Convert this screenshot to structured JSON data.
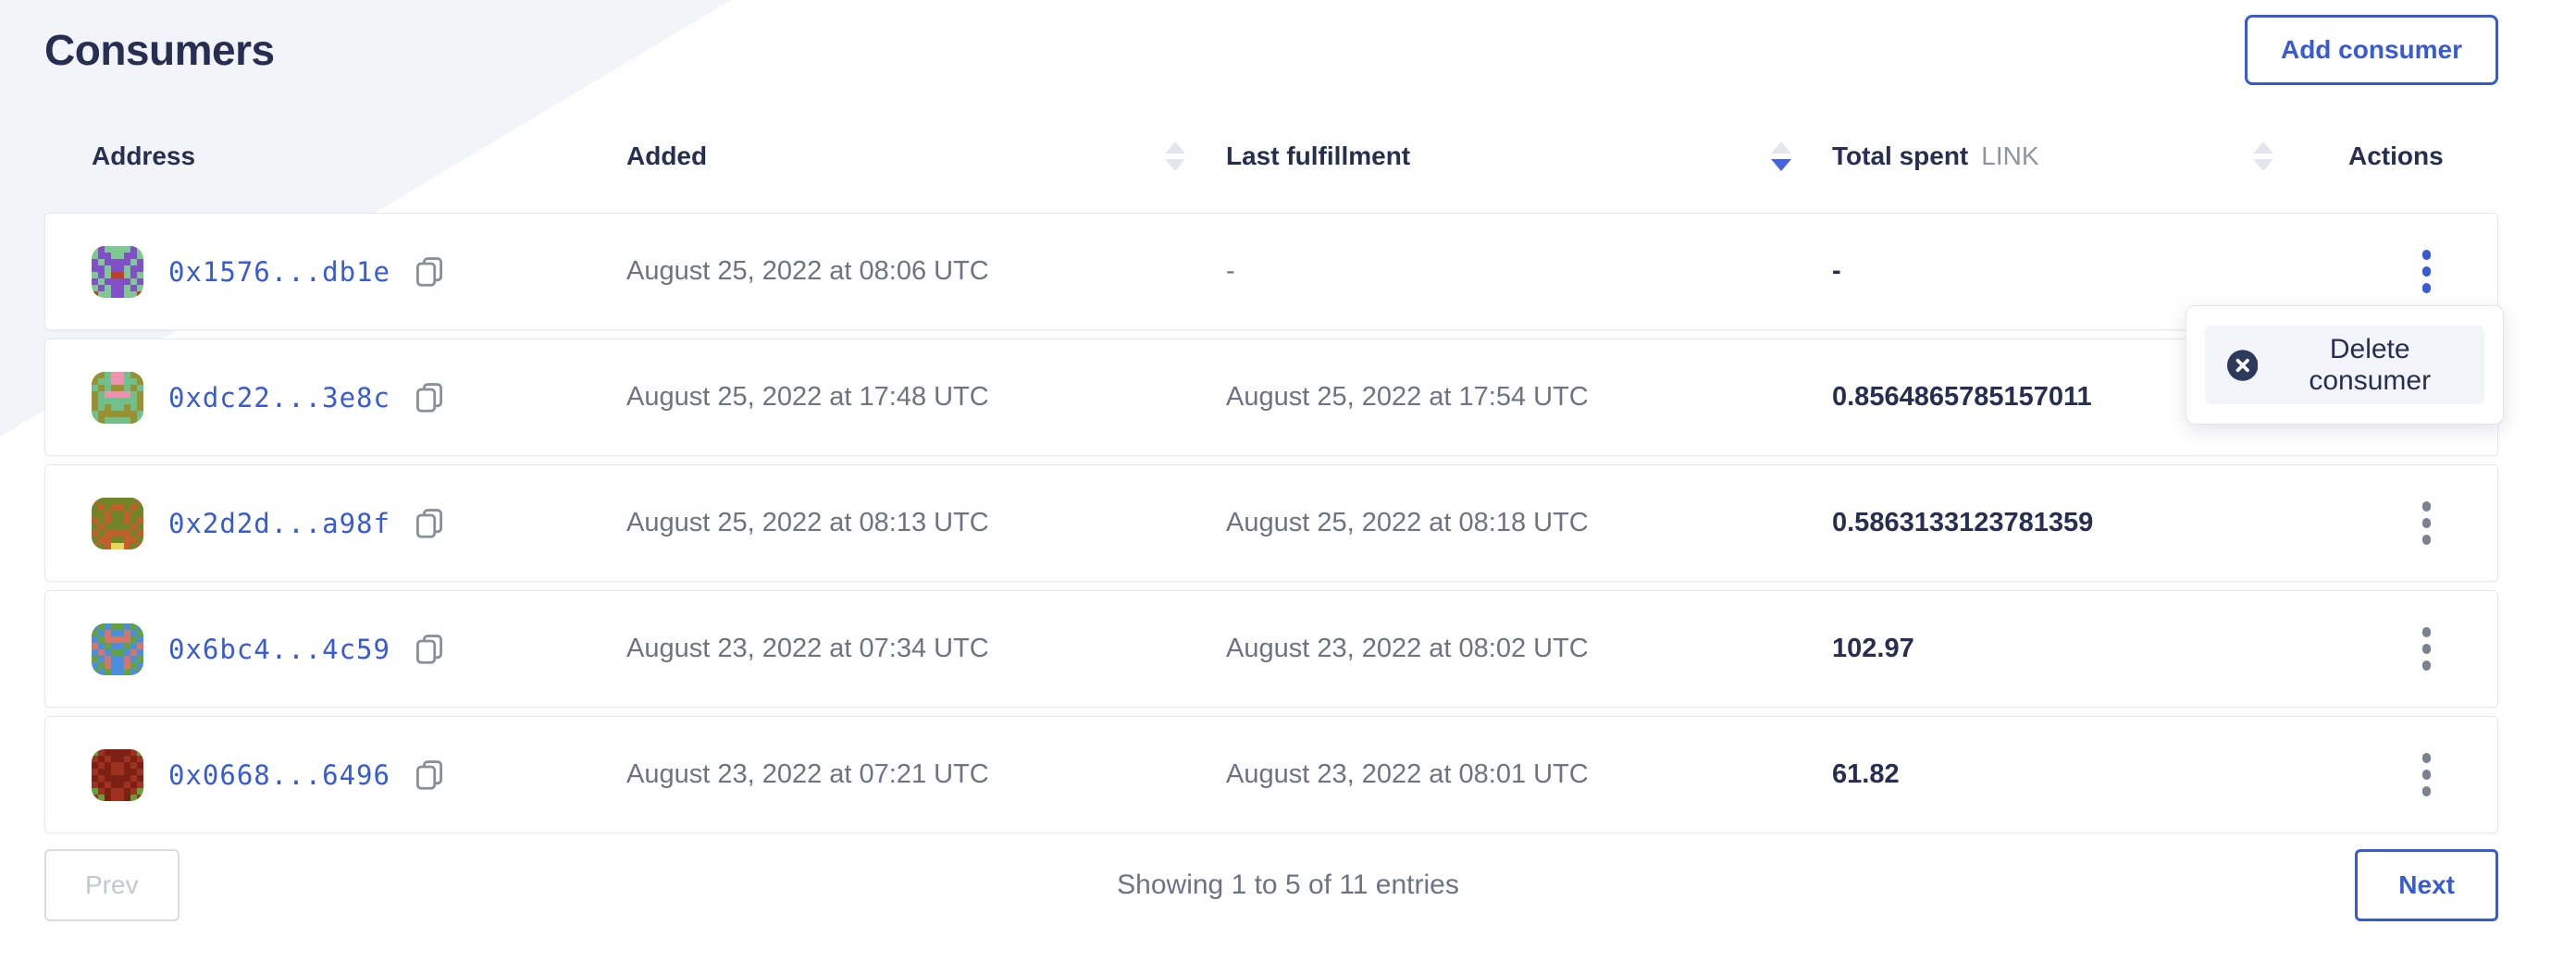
{
  "page": {
    "title": "Consumers",
    "add_button_label": "Add consumer"
  },
  "table": {
    "headers": {
      "address": "Address",
      "added": "Added",
      "last_fulfillment": "Last fulfillment",
      "total_spent": "Total spent",
      "total_spent_unit": "LINK",
      "actions": "Actions"
    },
    "sorted_by": "last_fulfillment",
    "sort_direction": "desc",
    "rows": [
      {
        "address": "0x1576...db1e",
        "added": "August 25, 2022 at 08:06 UTC",
        "last_fulfillment": "-",
        "total_spent": "-"
      },
      {
        "address": "0xdc22...3e8c",
        "added": "August 25, 2022 at 17:48 UTC",
        "last_fulfillment": "August 25, 2022 at 17:54 UTC",
        "total_spent": "0.8564865785157011"
      },
      {
        "address": "0x2d2d...a98f",
        "added": "August 25, 2022 at 08:13 UTC",
        "last_fulfillment": "August 25, 2022 at 08:18 UTC",
        "total_spent": "0.5863133123781359"
      },
      {
        "address": "0x6bc4...4c59",
        "added": "August 23, 2022 at 07:34 UTC",
        "last_fulfillment": "August 23, 2022 at 08:02 UTC",
        "total_spent": "102.97"
      },
      {
        "address": "0x0668...6496",
        "added": "August 23, 2022 at 07:21 UTC",
        "last_fulfillment": "August 23, 2022 at 08:01 UTC",
        "total_spent": "61.82"
      }
    ]
  },
  "row_menu": {
    "delete_label": "Delete consumer"
  },
  "pagination": {
    "prev_label": "Prev",
    "status": "Showing 1 to 5 of 11 entries",
    "next_label": "Next"
  },
  "colors": {
    "accent_blue": "#375bd2",
    "navy_text": "#262e52",
    "muted_text": "#6d7382",
    "unit_gray": "#9094a1",
    "disabled_gray": "#c3c7d1"
  },
  "identicons": [
    {
      "bg": "#7fc793",
      "fg": "#8150c6",
      "spot": "#bf4123",
      "pattern": [
        ".f....f.",
        ".ff..ff.",
        "f.ffff.f",
        "ff.ff.ff",
        ".f.ss.f.",
        "f.ffff.f",
        ".f.ff.f.",
        "s..ff..s"
      ]
    },
    {
      "bg": "#6fc08b",
      "fg": "#97912f",
      "spot": "#ef91b1",
      "pattern": [
        "ff.ss.ff",
        "f..ss..f",
        ".f.ff.f.",
        "f.ssss.f",
        "f......f",
        "f.f..f.f",
        ".ffffff.",
        ".f....f."
      ]
    },
    {
      "bg": "#c35f2c",
      "fg": "#708526",
      "spot": "#e4d95b",
      "pattern": [
        ".ffffff.",
        "f.f..f.f",
        "ff.ff.ff",
        ".f.ff.f.",
        "f.ffff.f",
        ".f....f.",
        "f..ff..f",
        ".f.ss.f."
      ]
    },
    {
      "bg": "#4b8ede",
      "fg": "#64a33c",
      "spot": "#d4776b",
      "pattern": [
        ".f.ff.f.",
        "f.s..s.f",
        ".fssssf.",
        "s.f..f.s",
        ".s.ff.s.",
        "f.s..s.f",
        ".fs..sf.",
        "f.f..f.f"
      ]
    },
    {
      "bg": "#9e3120",
      "fg": "#7c2013",
      "spot": "#5fa43a",
      "pattern": [
        "s.ffff.s",
        ".f.ff.f.",
        "f.f..f.f",
        ".ff..ff.",
        "f.ffff.f",
        ".f.ff.f.",
        "s.f..f.s",
        ".sf..fs."
      ]
    }
  ]
}
